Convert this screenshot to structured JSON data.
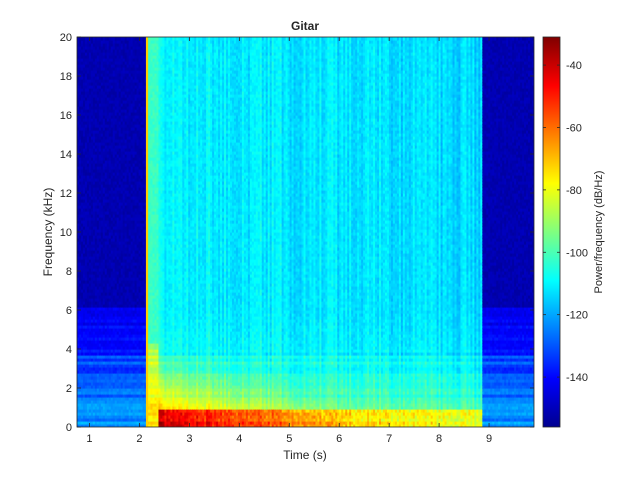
{
  "chart_data": {
    "type": "heatmap",
    "title": "Gitar",
    "xlabel": "Time (s)",
    "ylabel": "Frequency (kHz)",
    "colorbar_label": "Power/frequency (dB/Hz)",
    "colormap": "jet",
    "xlim": [
      0.75,
      9.9
    ],
    "ylim": [
      0,
      20
    ],
    "clim": [
      -156,
      -31
    ],
    "x_ticks": [
      "1",
      "2",
      "3",
      "4",
      "5",
      "6",
      "7",
      "8",
      "9"
    ],
    "y_ticks": [
      "0",
      "2",
      "4",
      "6",
      "8",
      "10",
      "12",
      "14",
      "16",
      "18",
      "20"
    ],
    "colorbar_ticks": [
      "-40",
      "-60",
      "-80",
      "-100",
      "-120",
      "-140"
    ],
    "signal": {
      "silence_before_s": [
        0.75,
        2.15
      ],
      "pick_attack_s": 2.15,
      "note_onset_s": 2.4,
      "sustain_s": [
        2.4,
        8.85
      ],
      "silence_after_s": [
        8.85,
        9.9
      ],
      "fundamental_khz": 0.15,
      "strong_harmonics_below_khz": 4,
      "peak_power_db": -31,
      "sustain_background_db": -110,
      "silence_background_db": -150
    },
    "grid": false
  }
}
